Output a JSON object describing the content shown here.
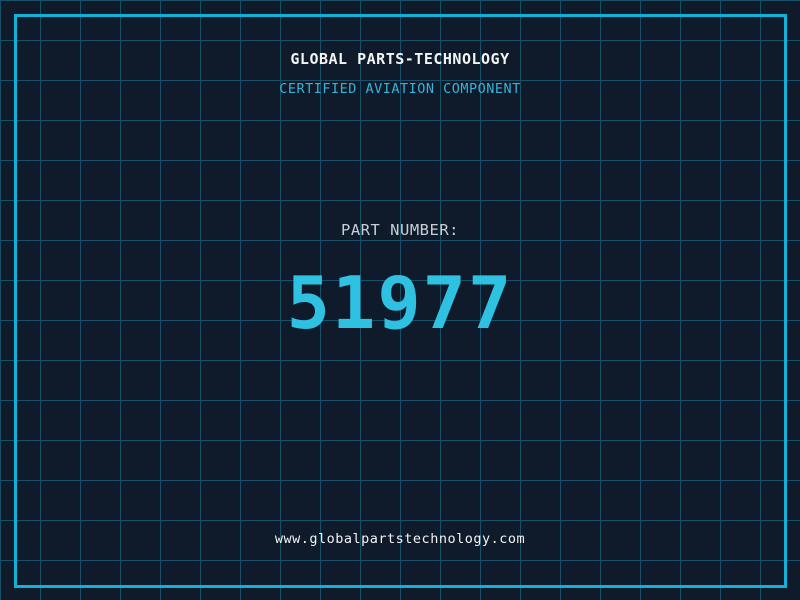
{
  "header": {
    "title": "GLOBAL PARTS-TECHNOLOGY",
    "subtitle": "CERTIFIED AVIATION COMPONENT"
  },
  "part": {
    "label": "PART NUMBER:",
    "number": "51977"
  },
  "footer": {
    "website": "www.globalpartstechnology.com"
  },
  "colors": {
    "background": "#0f1a2a",
    "grid_line": "#16516b",
    "frame_border": "#12b2d8",
    "title_text": "#f2f4f6",
    "subtitle_text": "#38b2d6",
    "label_text": "#c9ced6",
    "number_text": "#2fc1e1"
  }
}
